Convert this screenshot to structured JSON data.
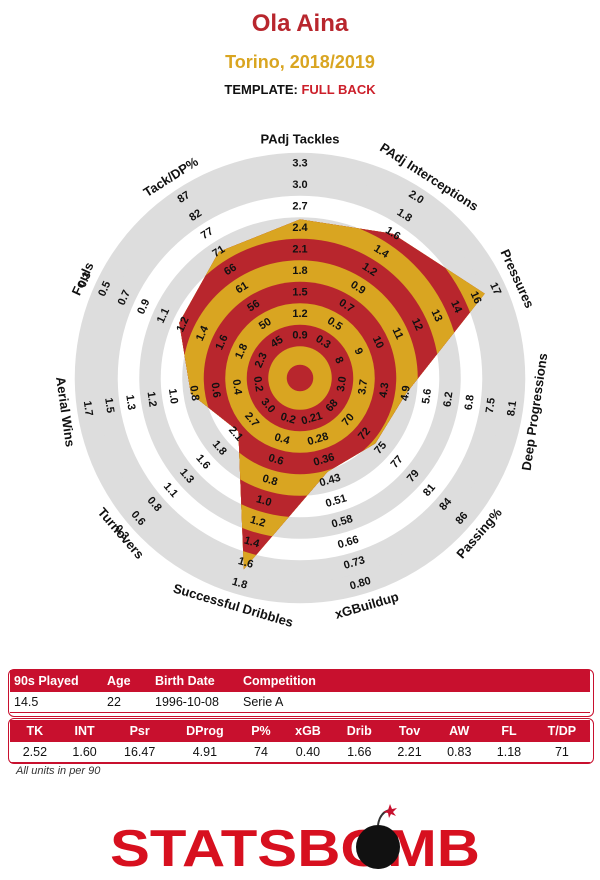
{
  "header": {
    "player": "Ola Aina",
    "club_season": "Torino, 2018/2019",
    "template_label": "TEMPLATE:",
    "template_value": "FULL BACK"
  },
  "colors": {
    "ring_dark": "#b8262d",
    "ring_gold": "#d9a521",
    "ring_grey": "#dddddd",
    "title_red": "#b8262d",
    "gold": "#d9a521",
    "table_red": "#c8102e"
  },
  "chart_data": {
    "type": "radar",
    "metrics": [
      {
        "name": "PAdj Tackles",
        "ticks": [
          "0.9",
          "1.2",
          "1.5",
          "1.8",
          "2.1",
          "2.4",
          "2.7",
          "3.0",
          "3.3"
        ],
        "value": 2.52
      },
      {
        "name": "PAdj Interceptions",
        "ticks": [
          "0.3",
          "0.5",
          "0.7",
          "0.9",
          "1.2",
          "1.4",
          "1.6",
          "1.8",
          "2.0"
        ],
        "value": 1.6
      },
      {
        "name": "Pressures",
        "ticks": [
          "8",
          "9",
          "10",
          "11",
          "12",
          "13",
          "14",
          "16",
          "17"
        ],
        "value": 16.47
      },
      {
        "name": "Deep Progressions",
        "ticks": [
          "3.0",
          "3.7",
          "4.3",
          "4.9",
          "5.6",
          "6.2",
          "6.8",
          "7.5",
          "8.1"
        ],
        "value": 4.91
      },
      {
        "name": "Passing%",
        "ticks": [
          "68",
          "70",
          "72",
          "75",
          "77",
          "79",
          "81",
          "84",
          "86"
        ],
        "value": 74
      },
      {
        "name": "xGBuildup",
        "ticks": [
          "0.21",
          "0.28",
          "0.36",
          "0.43",
          "0.51",
          "0.58",
          "0.66",
          "0.73",
          "0.80"
        ],
        "value": 0.4
      },
      {
        "name": "Successful Dribbles",
        "ticks": [
          "0.2",
          "0.4",
          "0.6",
          "0.8",
          "1.0",
          "1.2",
          "1.4",
          "1.6",
          "1.8"
        ],
        "value": 1.66
      },
      {
        "name": "Turnovers",
        "ticks": [
          "3.0",
          "2.7",
          "2.1",
          "1.8",
          "1.6",
          "1.3",
          "1.1",
          "0.8",
          "0.6",
          "0.3"
        ],
        "value": 2.21
      },
      {
        "name": "Aerial Wins",
        "ticks": [
          "0.2",
          "0.4",
          "0.6",
          "0.8",
          "1.0",
          "1.2",
          "1.3",
          "1.5",
          "1.7"
        ],
        "value": 0.83
      },
      {
        "name": "Fouls",
        "ticks": [
          "2.3",
          "1.8",
          "1.6",
          "1.4",
          "1.2",
          "1.1",
          "0.9",
          "0.7",
          "0.5",
          "0.3"
        ],
        "value": 1.18
      },
      {
        "name": "Tack/DP%",
        "ticks": [
          "45",
          "50",
          "56",
          "61",
          "66",
          "71",
          "77",
          "82",
          "87"
        ],
        "value": 71
      }
    ],
    "rings": 10
  },
  "info_table": {
    "headers": [
      "90s Played",
      "Age",
      "Birth Date",
      "Competition"
    ],
    "row": [
      "14.5",
      "22",
      "1996-10-08",
      "Serie A"
    ]
  },
  "stats_table": {
    "headers": [
      "TK",
      "INT",
      "Psr",
      "DProg",
      "P%",
      "xGB",
      "Drib",
      "Tov",
      "AW",
      "FL",
      "T/DP"
    ],
    "row": [
      "2.52",
      "1.60",
      "16.47",
      "4.91",
      "74",
      "0.40",
      "1.66",
      "2.21",
      "0.83",
      "1.18",
      "71"
    ]
  },
  "footnote": "All units in per 90",
  "logo": {
    "text": "STATSBOMB",
    "name": "statsbomb-logo"
  }
}
